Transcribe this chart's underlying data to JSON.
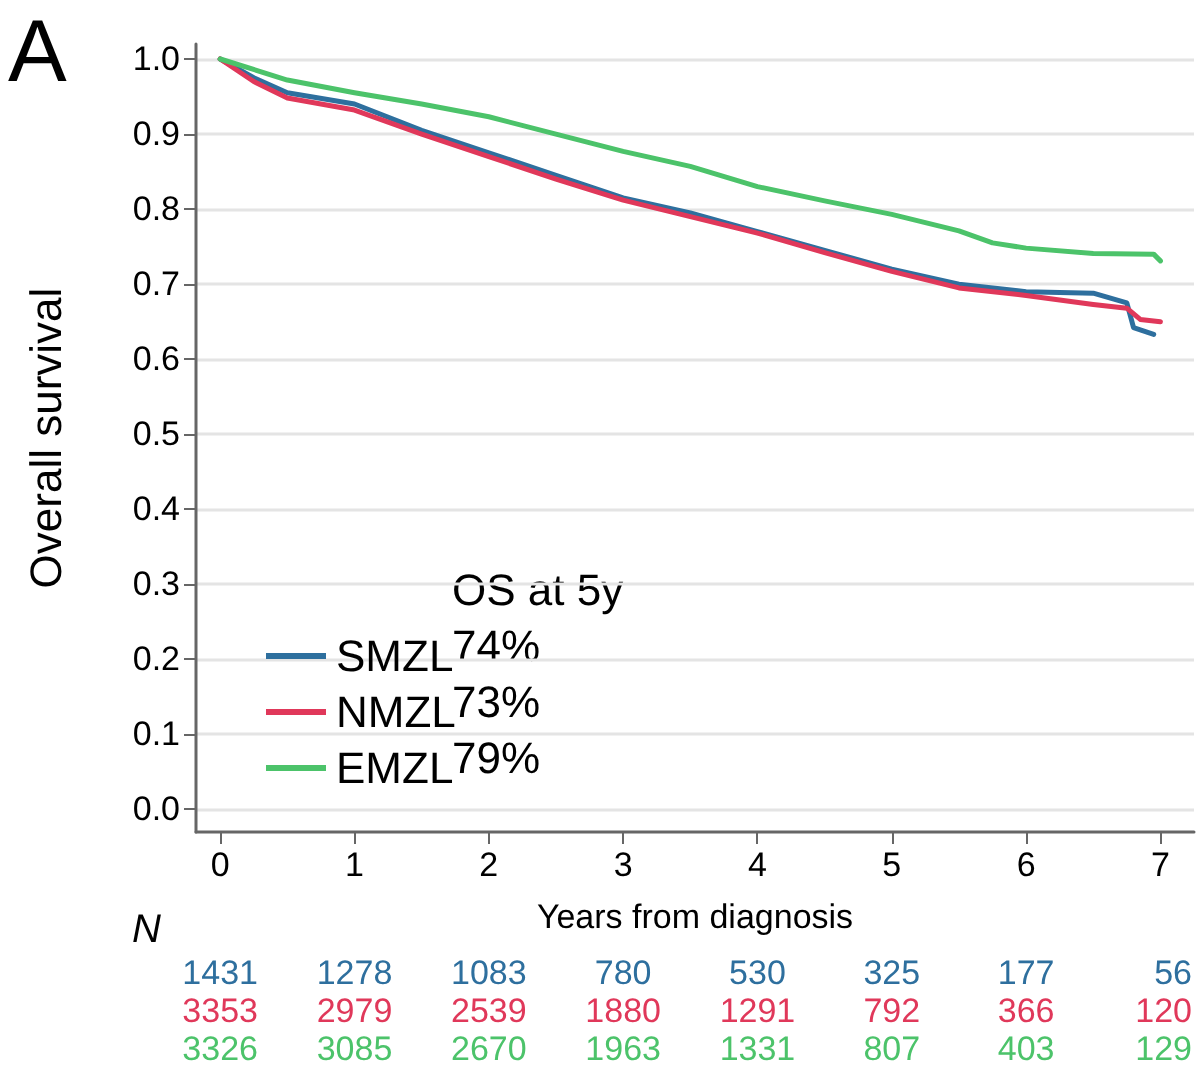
{
  "chart_data": {
    "type": "line",
    "xlabel": "Years from diagnosis",
    "ylabel": "Overall survival",
    "legend_title": "OS at 5y",
    "series": [
      {
        "name": "SMZL",
        "color": "#2e6f9e",
        "x": [
          0,
          0.25,
          0.5,
          1,
          1.5,
          2,
          2.5,
          3,
          3.5,
          4,
          4.5,
          5,
          5.5,
          6,
          6.5,
          6.75,
          6.8,
          6.95
        ],
        "values": [
          1.0,
          0.975,
          0.955,
          0.94,
          0.905,
          0.875,
          0.845,
          0.815,
          0.795,
          0.77,
          0.745,
          0.72,
          0.7,
          0.69,
          0.688,
          0.675,
          0.642,
          0.633
        ]
      },
      {
        "name": "NMZL",
        "color": "#e0385a",
        "x": [
          0,
          0.25,
          0.5,
          1,
          1.5,
          2,
          2.5,
          3,
          3.5,
          4,
          4.5,
          5,
          5.5,
          6,
          6.5,
          6.75,
          6.85,
          7.0
        ],
        "values": [
          1.0,
          0.97,
          0.948,
          0.932,
          0.9,
          0.87,
          0.84,
          0.812,
          0.79,
          0.768,
          0.742,
          0.717,
          0.695,
          0.685,
          0.673,
          0.668,
          0.653,
          0.65
        ]
      },
      {
        "name": "EMZL",
        "color": "#4cc36a",
        "x": [
          0,
          0.5,
          1,
          1.5,
          2,
          2.5,
          3,
          3.5,
          4,
          4.5,
          5,
          5.5,
          5.75,
          6,
          6.5,
          6.95,
          7.0
        ],
        "values": [
          1.0,
          0.972,
          0.955,
          0.94,
          0.923,
          0.9,
          0.877,
          0.857,
          0.83,
          0.811,
          0.793,
          0.771,
          0.755,
          0.748,
          0.741,
          0.74,
          0.731
        ]
      }
    ],
    "annotations": [
      "A",
      "74%",
      "73%",
      "79%",
      "N",
      "1431",
      "1278",
      "1083",
      "780",
      "530",
      "325",
      "177",
      "56",
      "3353",
      "2979",
      "2539",
      "1880",
      "1291",
      "792",
      "366",
      "120",
      "3326",
      "3085",
      "2670",
      "1963",
      "1331",
      "807",
      "403",
      "129"
    ],
    "xlim": [
      -0.18,
      7.25
    ],
    "xticks": [
      0,
      1,
      2,
      3,
      4,
      5,
      6,
      7
    ],
    "ylim": [
      -0.03,
      1.02
    ],
    "yticks": [
      {
        "value": 0,
        "label": "0.0"
      },
      {
        "value": 0.1,
        "label": "0.1"
      },
      {
        "value": 0.2,
        "label": "0.2"
      },
      {
        "value": 0.3,
        "label": "0.3"
      },
      {
        "value": 0.4,
        "label": "0.4"
      },
      {
        "value": 0.5,
        "label": "0.5"
      },
      {
        "value": 0.6,
        "label": "0.6"
      },
      {
        "value": 0.7,
        "label": "0.7"
      },
      {
        "value": 0.8,
        "label": "0.8"
      },
      {
        "value": 0.9,
        "label": "0.9"
      },
      {
        "value": 1,
        "label": "1.0"
      }
    ],
    "grid": "y",
    "legend": "bottom left",
    "marker": "none",
    "line_style": "solid"
  }
}
